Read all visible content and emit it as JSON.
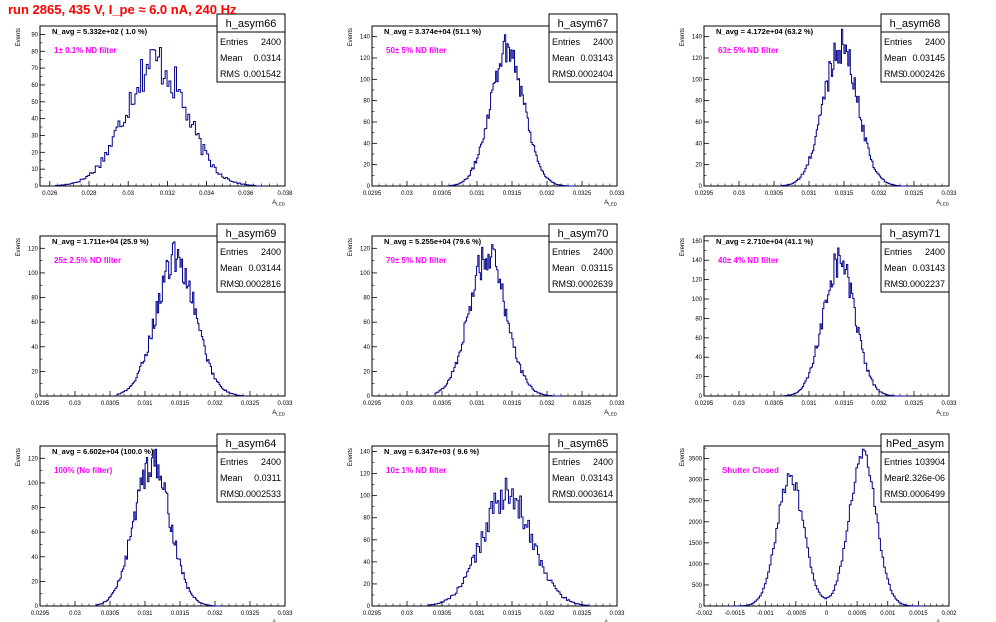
{
  "title": "run 2865,    435 V, I_pe ≈ 6.0 nA, 240 Hz",
  "colors": {
    "title": "#ff0000",
    "histogram": "#00008b",
    "annotation": "#ff00ff",
    "frame": "#000000"
  },
  "stats_labels": {
    "entries": "Entries",
    "mean": "Mean",
    "rms": "RMS"
  },
  "chart_data": [
    {
      "type": "histogram",
      "name": "h_asym66",
      "entries": "2400",
      "mean": "0.0314",
      "rms": "0.001542",
      "navg": "N_avg = 5.332e+02 ( 1.0 %)",
      "annotation": "1± 0.1% ND filter",
      "xlabel": "A",
      "xlabel_sub": "LED",
      "ylabel": "Events",
      "xlim": [
        0.0255,
        0.038
      ],
      "ylim": [
        0,
        95
      ],
      "xticks": [
        0.026,
        0.028,
        0.03,
        0.032,
        0.034,
        0.036,
        0.038
      ],
      "xtick_labels": [
        "0.026",
        "0.028",
        "0.03",
        "0.032",
        "0.034",
        "0.036",
        "0.038"
      ],
      "yticks": [
        0,
        10,
        20,
        30,
        40,
        50,
        60,
        70,
        80,
        90
      ],
      "profile": {
        "peaks": [
          {
            "mu": 0.0314,
            "sigma": 0.00154,
            "amp": 74
          }
        ],
        "xmin": 0.0262,
        "xmax": 0.0368,
        "noise": 0.12,
        "bins": 110
      }
    },
    {
      "type": "histogram",
      "name": "h_asym67",
      "entries": "2400",
      "mean": "0.03143",
      "rms": "0.0002404",
      "navg": "N_avg = 3.374e+04 (51.1 %)",
      "annotation": "50± 5% ND filter",
      "xlabel": "A",
      "xlabel_sub": "LED",
      "ylabel": "Events",
      "xlim": [
        0.0295,
        0.033
      ],
      "ylim": [
        0,
        150
      ],
      "xticks": [
        0.0295,
        0.03,
        0.0305,
        0.031,
        0.0315,
        0.032,
        0.0325,
        0.033
      ],
      "xtick_labels": [
        "0.0295",
        "0.03",
        "0.0305",
        "0.031",
        "0.0315",
        "0.032",
        "0.0325",
        "0.033"
      ],
      "yticks": [
        0,
        20,
        40,
        60,
        80,
        100,
        120,
        140
      ],
      "profile": {
        "peaks": [
          {
            "mu": 0.03143,
            "sigma": 0.00024,
            "amp": 130
          }
        ],
        "xmin": 0.0306,
        "xmax": 0.0324,
        "noise": 0.08,
        "bins": 100
      }
    },
    {
      "type": "histogram",
      "name": "h_asym68",
      "entries": "2400",
      "mean": "0.03145",
      "rms": "0.0002426",
      "navg": "N_avg = 4.172e+04 (63.2 %)",
      "annotation": "63± 5% ND filter",
      "xlabel": "A",
      "xlabel_sub": "LED",
      "ylabel": "Events",
      "xlim": [
        0.0295,
        0.033
      ],
      "ylim": [
        0,
        150
      ],
      "xticks": [
        0.0295,
        0.03,
        0.0305,
        0.031,
        0.0315,
        0.032,
        0.0325,
        0.033
      ],
      "xtick_labels": [
        "0.0295",
        "0.03",
        "0.0305",
        "0.031",
        "0.0315",
        "0.032",
        "0.0325",
        "0.033"
      ],
      "yticks": [
        0,
        20,
        40,
        60,
        80,
        100,
        120,
        140
      ],
      "profile": {
        "peaks": [
          {
            "mu": 0.03145,
            "sigma": 0.000243,
            "amp": 132
          }
        ],
        "xmin": 0.0306,
        "xmax": 0.0324,
        "noise": 0.08,
        "bins": 100
      }
    },
    {
      "type": "histogram",
      "name": "h_asym69",
      "entries": "2400",
      "mean": "0.03144",
      "rms": "0.0002816",
      "navg": "N_avg = 1.711e+04 (25.9 %)",
      "annotation": "25± 2.5% ND filter",
      "xlabel": "A",
      "xlabel_sub": "LED",
      "ylabel": "Events",
      "xlim": [
        0.0295,
        0.033
      ],
      "ylim": [
        0,
        130
      ],
      "xticks": [
        0.0295,
        0.03,
        0.0305,
        0.031,
        0.0315,
        0.032,
        0.0325,
        0.033
      ],
      "xtick_labels": [
        "0.0295",
        "0.03",
        "0.0305",
        "0.031",
        "0.0315",
        "0.032",
        "0.0325",
        "0.033"
      ],
      "yticks": [
        0,
        20,
        40,
        60,
        80,
        100,
        120
      ],
      "profile": {
        "peaks": [
          {
            "mu": 0.03144,
            "sigma": 0.00028,
            "amp": 112
          }
        ],
        "xmin": 0.0306,
        "xmax": 0.0324,
        "noise": 0.08,
        "bins": 100
      }
    },
    {
      "type": "histogram",
      "name": "h_asym70",
      "entries": "2400",
      "mean": "0.03115",
      "rms": "0.0002639",
      "navg": "N_avg = 5.255e+04 (79.6 %)",
      "annotation": "79± 5% ND filter",
      "xlabel": "A",
      "xlabel_sub": "LED",
      "ylabel": "Events",
      "xlim": [
        0.0295,
        0.033
      ],
      "ylim": [
        0,
        130
      ],
      "xticks": [
        0.0295,
        0.03,
        0.0305,
        0.031,
        0.0315,
        0.032,
        0.0325,
        0.033
      ],
      "xtick_labels": [
        "0.0295",
        "0.03",
        "0.0305",
        "0.031",
        "0.0315",
        "0.032",
        "0.0325",
        "0.033"
      ],
      "yticks": [
        0,
        20,
        40,
        60,
        80,
        100,
        120
      ],
      "profile": {
        "peaks": [
          {
            "mu": 0.03115,
            "sigma": 0.000264,
            "amp": 115
          }
        ],
        "xmin": 0.0304,
        "xmax": 0.0322,
        "noise": 0.08,
        "bins": 100
      }
    },
    {
      "type": "histogram",
      "name": "h_asym71",
      "entries": "2400",
      "mean": "0.03143",
      "rms": "0.0002237",
      "navg": "N_avg = 2.710e+04 (41.1 %)",
      "annotation": "40± 4% ND filter",
      "xlabel": "A",
      "xlabel_sub": "LED",
      "ylabel": "Events",
      "xlim": [
        0.0295,
        0.033
      ],
      "ylim": [
        0,
        165
      ],
      "xticks": [
        0.0295,
        0.03,
        0.0305,
        0.031,
        0.0315,
        0.032,
        0.0325,
        0.033
      ],
      "xtick_labels": [
        "0.0295",
        "0.03",
        "0.0305",
        "0.031",
        "0.0315",
        "0.032",
        "0.0325",
        "0.033"
      ],
      "yticks": [
        0,
        20,
        40,
        60,
        80,
        100,
        120,
        140,
        160
      ],
      "profile": {
        "peaks": [
          {
            "mu": 0.03143,
            "sigma": 0.000224,
            "amp": 140
          }
        ],
        "xmin": 0.0306,
        "xmax": 0.0324,
        "noise": 0.08,
        "bins": 100
      }
    },
    {
      "type": "histogram",
      "name": "h_asym64",
      "entries": "2400",
      "mean": "0.0311",
      "rms": "0.0002533",
      "navg": "N_avg = 6.602e+04 (100.0 %)",
      "annotation": "100% (No filter)",
      "xlabel": "A",
      "xlabel_sub": "LED",
      "ylabel": "Events",
      "xlim": [
        0.0295,
        0.033
      ],
      "ylim": [
        0,
        130
      ],
      "xticks": [
        0.0295,
        0.03,
        0.0305,
        0.031,
        0.0315,
        0.032,
        0.0325,
        0.033
      ],
      "xtick_labels": [
        "0.0295",
        "0.03",
        "0.0305",
        "0.031",
        "0.0315",
        "0.032",
        "0.0325",
        "0.033"
      ],
      "yticks": [
        0,
        20,
        40,
        60,
        80,
        100,
        120
      ],
      "profile": {
        "peaks": [
          {
            "mu": 0.0311,
            "sigma": 0.000253,
            "amp": 118
          }
        ],
        "xmin": 0.0303,
        "xmax": 0.0321,
        "noise": 0.08,
        "bins": 100
      }
    },
    {
      "type": "histogram",
      "name": "h_asym65",
      "entries": "2400",
      "mean": "0.03143",
      "rms": "0.0003614",
      "navg": "N_avg = 6.347e+03 ( 9.6 %)",
      "annotation": "10± 1% ND filter",
      "xlabel": "A",
      "xlabel_sub": "LED",
      "ylabel": "Events",
      "xlim": [
        0.0295,
        0.033
      ],
      "ylim": [
        0,
        145
      ],
      "xticks": [
        0.0295,
        0.03,
        0.0305,
        0.031,
        0.0315,
        0.032,
        0.0325,
        0.033
      ],
      "xtick_labels": [
        "0.0295",
        "0.03",
        "0.0305",
        "0.031",
        "0.0315",
        "0.032",
        "0.0325",
        "0.033"
      ],
      "yticks": [
        0,
        20,
        40,
        60,
        80,
        100,
        120,
        140
      ],
      "profile": {
        "peaks": [
          {
            "mu": 0.03143,
            "sigma": 0.00036,
            "amp": 100
          }
        ],
        "xmin": 0.0303,
        "xmax": 0.0326,
        "noise": 0.1,
        "bins": 100
      }
    },
    {
      "type": "histogram",
      "name": "hPed_asym",
      "entries": "103904",
      "mean": "2.326e-06",
      "rms": "0.0006499",
      "navg": "",
      "annotation": "Shutter Closed",
      "xlabel": "A",
      "xlabel_sub": "LED",
      "ylabel": "Events",
      "xlim": [
        -0.002,
        0.002
      ],
      "ylim": [
        0,
        3800
      ],
      "xticks": [
        -0.002,
        -0.0015,
        -0.001,
        -0.0005,
        0,
        0.0005,
        0.001,
        0.0015,
        0.002
      ],
      "xtick_labels": [
        "-0.002",
        "-0.0015",
        "-0.001",
        "-0.0005",
        "0",
        "0.0005",
        "0.001",
        "0.0015",
        "0.002"
      ],
      "yticks": [
        0,
        500,
        1000,
        1500,
        2000,
        2500,
        3000,
        3500
      ],
      "profile": {
        "peaks": [
          {
            "mu": -0.00059,
            "sigma": 0.00022,
            "amp": 3050
          },
          {
            "mu": 0.00059,
            "sigma": 0.00022,
            "amp": 3600
          }
        ],
        "xmin": -0.0016,
        "xmax": 0.0016,
        "noise": 0.04,
        "bins": 120
      }
    }
  ]
}
